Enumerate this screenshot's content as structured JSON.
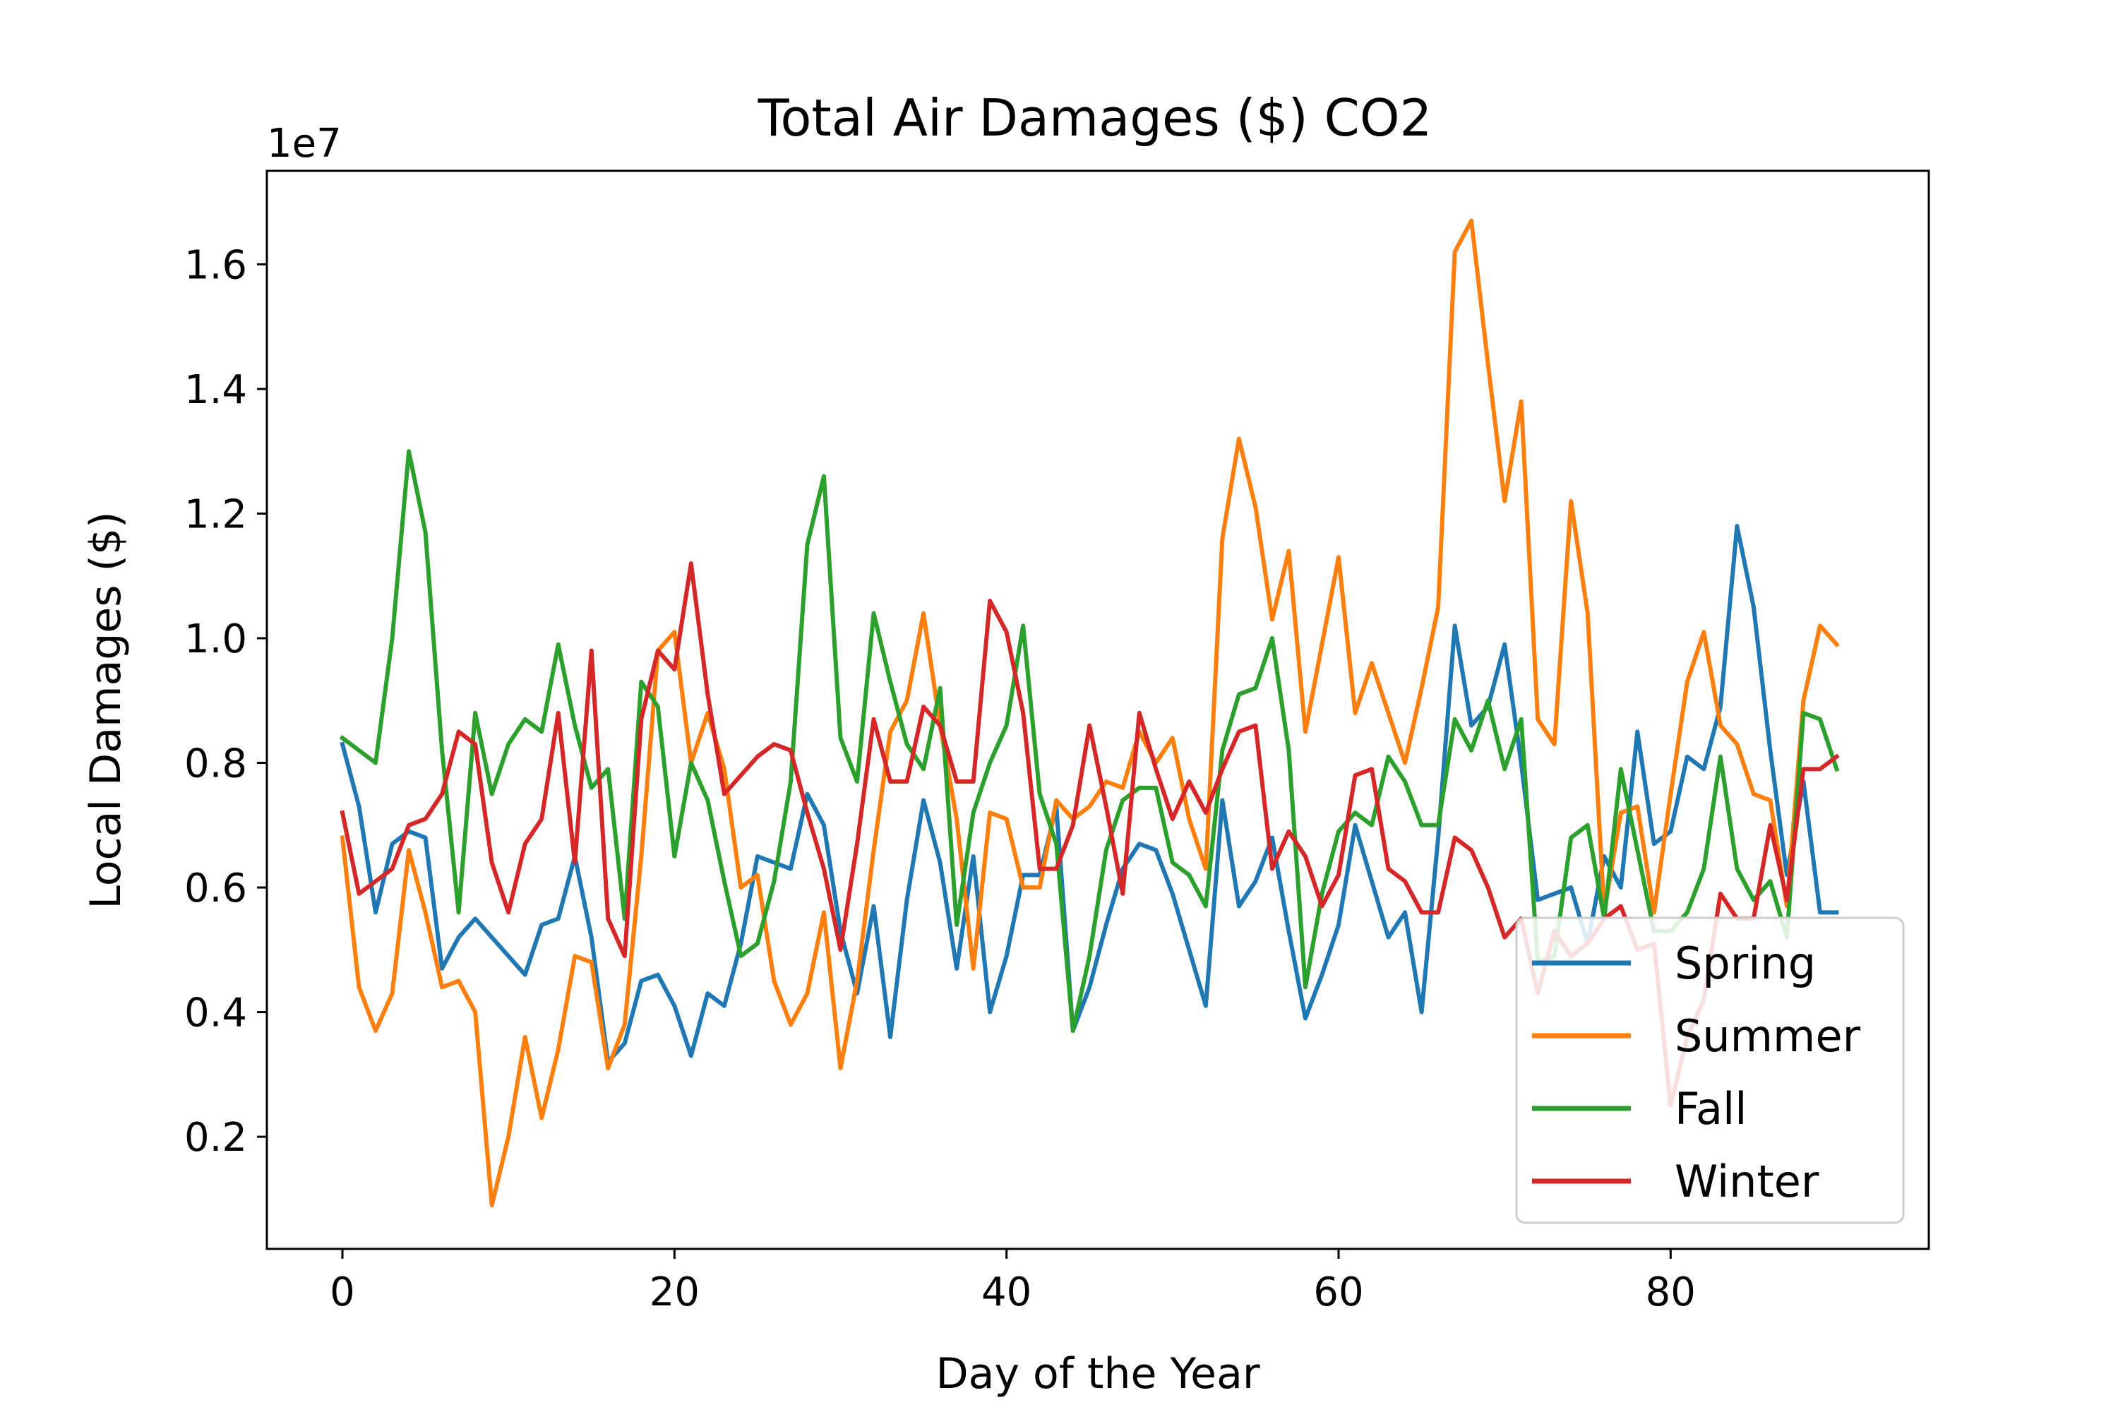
{
  "chart_data": {
    "type": "line",
    "title": "Total Air Damages ($) CO2",
    "xlabel": "Day of the Year",
    "ylabel": "Local Damages ($)",
    "y_offset_label": "1e7",
    "xlim": [
      -4.55,
      95.55
    ],
    "ylim": [
      0.02,
      1.75
    ],
    "y_scale_note": "y values in units of 1e7 $",
    "xticks": [
      0,
      20,
      40,
      60,
      80
    ],
    "yticks": [
      0.2,
      0.4,
      0.6,
      0.8,
      1.0,
      1.2,
      1.4,
      1.6
    ],
    "ytick_labels": [
      "0.2",
      "0.4",
      "0.6",
      "0.8",
      "1.0",
      "1.2",
      "1.4",
      "1.6"
    ],
    "grid": false,
    "legend_position": "lower-right",
    "series": [
      {
        "name": "Spring",
        "color": "#1f77b4",
        "values": [
          0.83,
          0.73,
          0.56,
          0.67,
          0.69,
          0.68,
          0.47,
          0.52,
          0.55,
          0.52,
          0.49,
          0.46,
          0.54,
          0.55,
          0.65,
          0.52,
          0.32,
          0.35,
          0.45,
          0.46,
          0.41,
          0.33,
          0.43,
          0.41,
          0.51,
          0.65,
          0.64,
          0.63,
          0.75,
          0.7,
          0.53,
          0.43,
          0.57,
          0.36,
          0.58,
          0.74,
          0.64,
          0.47,
          0.65,
          0.4,
          0.49,
          0.62,
          0.62,
          0.73,
          0.37,
          0.44,
          0.54,
          0.63,
          0.67,
          0.66,
          0.59,
          0.5,
          0.41,
          0.74,
          0.57,
          0.61,
          0.68,
          0.53,
          0.39,
          0.46,
          0.54,
          0.7,
          0.61,
          0.52,
          0.56,
          0.4,
          0.68,
          1.02,
          0.86,
          0.89,
          0.99,
          0.8,
          0.58,
          0.59,
          0.6,
          0.51,
          0.65,
          0.6,
          0.85,
          0.67,
          0.69,
          0.81,
          0.79,
          0.89,
          1.18,
          1.05,
          0.82,
          0.62,
          0.77,
          0.56,
          0.56
        ]
      },
      {
        "name": "Summer",
        "color": "#ff7f0e",
        "values": [
          0.68,
          0.44,
          0.37,
          0.43,
          0.66,
          0.56,
          0.44,
          0.45,
          0.4,
          0.09,
          0.2,
          0.36,
          0.23,
          0.34,
          0.49,
          0.48,
          0.31,
          0.38,
          0.65,
          0.98,
          1.01,
          0.8,
          0.88,
          0.79,
          0.6,
          0.62,
          0.45,
          0.38,
          0.43,
          0.56,
          0.31,
          0.45,
          0.66,
          0.85,
          0.9,
          1.04,
          0.86,
          0.71,
          0.47,
          0.72,
          0.71,
          0.6,
          0.6,
          0.74,
          0.71,
          0.73,
          0.77,
          0.76,
          0.85,
          0.8,
          0.84,
          0.71,
          0.63,
          1.16,
          1.32,
          1.21,
          1.03,
          1.14,
          0.85,
          0.99,
          1.13,
          0.88,
          0.96,
          0.88,
          0.8,
          0.92,
          1.05,
          1.62,
          1.67,
          1.44,
          1.22,
          1.38,
          0.87,
          0.83,
          1.22,
          1.04,
          0.56,
          0.72,
          0.73,
          0.56,
          0.75,
          0.93,
          1.01,
          0.86,
          0.83,
          0.75,
          0.74,
          0.57,
          0.9,
          1.02,
          0.99
        ]
      },
      {
        "name": "Fall",
        "color": "#2ca02c",
        "values": [
          0.84,
          0.82,
          0.8,
          1.0,
          1.3,
          1.17,
          0.82,
          0.56,
          0.88,
          0.75,
          0.83,
          0.87,
          0.85,
          0.99,
          0.86,
          0.76,
          0.79,
          0.55,
          0.93,
          0.89,
          0.65,
          0.8,
          0.74,
          0.61,
          0.49,
          0.51,
          0.61,
          0.77,
          1.15,
          1.26,
          0.84,
          0.77,
          1.04,
          0.93,
          0.83,
          0.79,
          0.92,
          0.54,
          0.72,
          0.8,
          0.86,
          1.02,
          0.75,
          0.67,
          0.37,
          0.49,
          0.66,
          0.74,
          0.76,
          0.76,
          0.64,
          0.62,
          0.57,
          0.82,
          0.91,
          0.92,
          1.0,
          0.82,
          0.44,
          0.59,
          0.69,
          0.72,
          0.7,
          0.81,
          0.77,
          0.7,
          0.7,
          0.87,
          0.82,
          0.9,
          0.79,
          0.87,
          0.48,
          0.49,
          0.68,
          0.7,
          0.55,
          0.79,
          0.66,
          0.53,
          0.53,
          0.56,
          0.63,
          0.81,
          0.63,
          0.58,
          0.61,
          0.52,
          0.88,
          0.87,
          0.79
        ]
      },
      {
        "name": "Winter",
        "color": "#d62728",
        "values": [
          0.72,
          0.59,
          0.61,
          0.63,
          0.7,
          0.71,
          0.75,
          0.85,
          0.83,
          0.64,
          0.56,
          0.67,
          0.71,
          0.88,
          0.64,
          0.98,
          0.55,
          0.49,
          0.87,
          0.98,
          0.95,
          1.12,
          0.91,
          0.75,
          0.78,
          0.81,
          0.83,
          0.82,
          0.72,
          0.63,
          0.5,
          0.67,
          0.87,
          0.77,
          0.77,
          0.89,
          0.86,
          0.77,
          0.77,
          1.06,
          1.01,
          0.88,
          0.63,
          0.63,
          0.7,
          0.86,
          0.73,
          0.59,
          0.88,
          0.79,
          0.71,
          0.77,
          0.72,
          0.79,
          0.85,
          0.86,
          0.63,
          0.69,
          0.65,
          0.57,
          0.62,
          0.78,
          0.79,
          0.63,
          0.61,
          0.56,
          0.56,
          0.68,
          0.66,
          0.6,
          0.52,
          0.55,
          0.43,
          0.53,
          0.49,
          0.51,
          0.55,
          0.57,
          0.5,
          0.51,
          0.25,
          0.36,
          0.42,
          0.59,
          0.55,
          0.55,
          0.7,
          0.58,
          0.79,
          0.79,
          0.81
        ]
      }
    ]
  }
}
